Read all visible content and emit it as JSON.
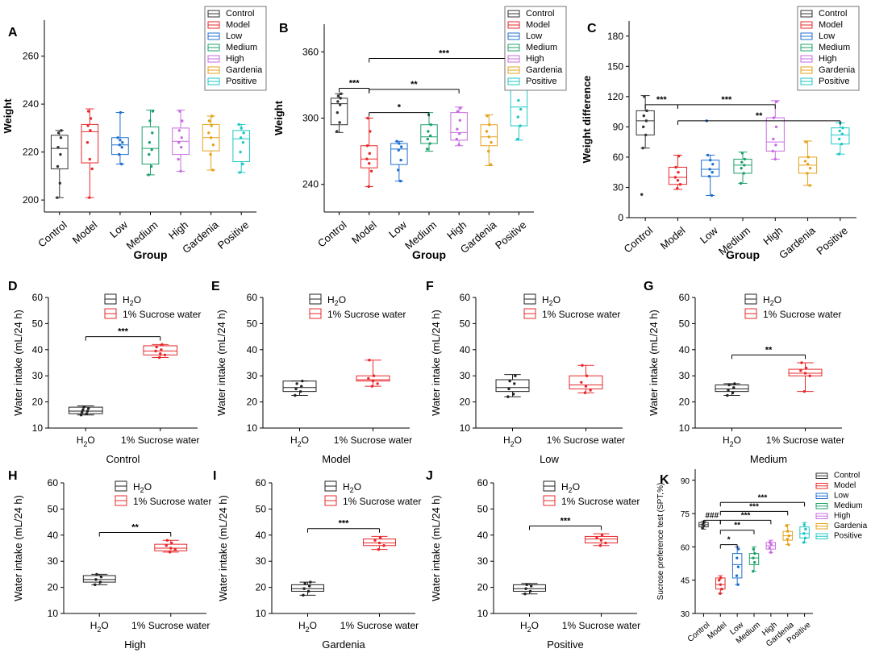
{
  "figure": {
    "colors": {
      "Control": "#333333",
      "Model": "#e8282b",
      "Low": "#1f6fd1",
      "Medium": "#1ca06a",
      "High": "#c76be0",
      "Gardenia": "#e5a21b",
      "Positive": "#1fc7c7",
      "H2O": "#222222",
      "Sucrose": "#e8282b"
    }
  },
  "chart_data": [
    {
      "panel": "A",
      "type": "box",
      "xlabel": "Group",
      "ylabel": "Weight",
      "ylim": [
        195,
        275
      ],
      "yticks": [
        200,
        220,
        240,
        260
      ],
      "legend": [
        "Control",
        "Model",
        "Low",
        "Medium",
        "High",
        "Gardenia",
        "Positive"
      ],
      "categories": [
        "Control",
        "Model",
        "Low",
        "Medium",
        "High",
        "Gardenia",
        "Positive"
      ],
      "boxes": [
        {
          "q1": 213,
          "median": 221.5,
          "q3": 227,
          "min": 201,
          "max": 229,
          "points": [
            201,
            207,
            214,
            219,
            222,
            226,
            228,
            229
          ]
        },
        {
          "q1": 215.5,
          "median": 228.5,
          "q3": 231.5,
          "min": 201,
          "max": 238,
          "points": [
            201,
            213,
            217,
            224,
            229,
            231,
            234,
            237
          ]
        },
        {
          "q1": 219,
          "median": 223,
          "q3": 226,
          "min": 215,
          "max": 236.5,
          "points": [
            215,
            219,
            222,
            223,
            224,
            225,
            226,
            236.5
          ]
        },
        {
          "q1": 215,
          "median": 221.5,
          "q3": 230.5,
          "min": 210.5,
          "max": 237.5,
          "points": [
            210.5,
            214,
            219,
            221,
            224,
            228,
            233,
            237
          ]
        },
        {
          "q1": 219,
          "median": 224.5,
          "q3": 230,
          "min": 212,
          "max": 237.5,
          "points": [
            212,
            217,
            222,
            224,
            226,
            229,
            233,
            237
          ]
        },
        {
          "q1": 220.5,
          "median": 226,
          "q3": 231.5,
          "min": 212.5,
          "max": 235,
          "points": [
            212.5,
            219,
            223,
            226,
            228,
            231,
            233,
            235
          ]
        },
        {
          "q1": 216,
          "median": 225.5,
          "q3": 229,
          "min": 211.5,
          "max": 231.5,
          "points": [
            211.5,
            215,
            220,
            224,
            226,
            228,
            230,
            231.5
          ]
        }
      ],
      "annotations": []
    },
    {
      "panel": "B",
      "type": "box",
      "xlabel": "Group",
      "ylabel": "Weight",
      "ylim": [
        215,
        385
      ],
      "yticks": [
        240,
        300,
        360
      ],
      "legend": [
        "Control",
        "Model",
        "Low",
        "Medium",
        "High",
        "Gardenia",
        "Positive"
      ],
      "categories": [
        "Control",
        "Model",
        "Low",
        "Medium",
        "High",
        "Gardenia",
        "Positive"
      ],
      "boxes": [
        {
          "q1": 294,
          "median": 313,
          "q3": 318,
          "min": 287,
          "max": 322,
          "points": [
            288,
            296,
            305,
            312,
            315,
            318,
            320,
            322
          ]
        },
        {
          "q1": 255,
          "median": 263,
          "q3": 275,
          "min": 238,
          "max": 300,
          "points": [
            238,
            252,
            259,
            263,
            268,
            275,
            288,
            300
          ]
        },
        {
          "q1": 258,
          "median": 272,
          "q3": 277,
          "min": 243,
          "max": 279,
          "points": [
            243,
            253,
            262,
            271,
            274,
            277,
            279
          ]
        },
        {
          "q1": 277,
          "median": 283,
          "q3": 294,
          "min": 270,
          "max": 305,
          "points": [
            272,
            277,
            281,
            284,
            288,
            294,
            303
          ]
        },
        {
          "q1": 280,
          "median": 287,
          "q3": 305,
          "min": 275,
          "max": 310,
          "points": [
            276,
            281,
            286,
            290,
            298,
            306,
            309
          ]
        },
        {
          "q1": 275,
          "median": 283,
          "q3": 294,
          "min": 257,
          "max": 303,
          "points": [
            258,
            270,
            278,
            283,
            288,
            294,
            302
          ]
        },
        {
          "q1": 293,
          "median": 310,
          "q3": 330,
          "min": 280,
          "max": 348,
          "points": [
            281,
            293,
            301,
            308,
            316,
            328,
            346
          ]
        }
      ],
      "annotations": [
        {
          "from": 0,
          "to": 1,
          "label": "***",
          "y": 327
        },
        {
          "from": 1,
          "to": 6,
          "label": "***",
          "y": 354
        },
        {
          "from": 1,
          "to": 4,
          "label": "**",
          "y": 326
        },
        {
          "from": 1,
          "to": 3,
          "label": "*",
          "y": 305
        }
      ]
    },
    {
      "panel": "C",
      "type": "box",
      "xlabel": "Group",
      "ylabel": "Weight difference",
      "ylim": [
        0,
        195
      ],
      "yticks": [
        0,
        30,
        60,
        90,
        120,
        150,
        180
      ],
      "legend": [
        "Control",
        "Model",
        "Low",
        "Medium",
        "High",
        "Gardenia",
        "Positive"
      ],
      "categories": [
        "Control",
        "Model",
        "Low",
        "Medium",
        "High",
        "Gardenia",
        "Positive"
      ],
      "boxes": [
        {
          "q1": 82,
          "median": 96,
          "q3": 106,
          "min": 69,
          "max": 121,
          "outliers": [
            23
          ],
          "points": [
            69,
            82,
            90,
            96,
            101,
            106,
            120
          ]
        },
        {
          "q1": 33,
          "median": 40,
          "q3": 50,
          "min": 28,
          "max": 62,
          "points": [
            29,
            33,
            37,
            40,
            45,
            50,
            61
          ]
        },
        {
          "q1": 41,
          "median": 48,
          "q3": 57,
          "min": 22,
          "max": 62,
          "outliers": [
            96
          ],
          "points": [
            22,
            41,
            45,
            48,
            53,
            57,
            62
          ]
        },
        {
          "q1": 44,
          "median": 52,
          "q3": 58,
          "min": 34,
          "max": 65,
          "points": [
            34,
            44,
            49,
            52,
            55,
            58,
            64
          ]
        },
        {
          "q1": 66,
          "median": 75,
          "q3": 99,
          "min": 58,
          "max": 116,
          "points": [
            58,
            66,
            72,
            78,
            90,
            99,
            115
          ]
        },
        {
          "q1": 44,
          "median": 52,
          "q3": 60,
          "min": 32,
          "max": 76,
          "points": [
            32,
            44,
            49,
            53,
            56,
            60,
            75
          ]
        },
        {
          "q1": 73,
          "median": 82,
          "q3": 89,
          "min": 63,
          "max": 94,
          "points": [
            63,
            73,
            78,
            83,
            86,
            89,
            94
          ]
        }
      ],
      "annotations": [
        {
          "from": 0,
          "to": 1,
          "label": "***",
          "y": 112
        },
        {
          "from": 1,
          "to": 4,
          "label": "***",
          "y": 112
        },
        {
          "from": 1,
          "to": 6,
          "label": "**",
          "y": 96
        }
      ]
    },
    {
      "panel": "D",
      "type": "box",
      "title": "Control",
      "ylabel": "Water intake  (mL/24 h)",
      "ylim": [
        10,
        60
      ],
      "yticks": [
        10,
        20,
        30,
        40,
        50,
        60
      ],
      "legend": [
        "H2O",
        "1% Sucrose water"
      ],
      "categories": [
        "H2O",
        "1% Sucrose water"
      ],
      "sig": "***",
      "boxes": [
        {
          "q1": 15.5,
          "median": 16.5,
          "q3": 18,
          "min": 15,
          "max": 18.5,
          "points": [
            15,
            15.5,
            16,
            16.5,
            17,
            17.5,
            18
          ]
        },
        {
          "q1": 38,
          "median": 39.5,
          "q3": 41.5,
          "min": 37,
          "max": 42,
          "points": [
            37,
            38,
            38.5,
            39.5,
            40,
            41,
            42
          ]
        }
      ]
    },
    {
      "panel": "E",
      "type": "box",
      "title": "Model",
      "ylabel": "Water intake  (mL/24 h)",
      "ylim": [
        10,
        60
      ],
      "yticks": [
        10,
        20,
        30,
        40,
        50,
        60
      ],
      "legend": [
        "H2O",
        "1% Sucrose water"
      ],
      "categories": [
        "H2O",
        "1% Sucrose water"
      ],
      "sig": "",
      "boxes": [
        {
          "q1": 24,
          "median": 25.5,
          "q3": 28,
          "min": 22.5,
          "max": 28,
          "points": [
            22.5,
            24,
            25,
            26,
            27,
            28
          ]
        },
        {
          "q1": 28,
          "median": 28.5,
          "q3": 30,
          "min": 26,
          "max": 36,
          "points": [
            26,
            27,
            28,
            29,
            30,
            36
          ]
        }
      ]
    },
    {
      "panel": "F",
      "type": "box",
      "title": "Low",
      "ylabel": "Water intake  (mL/24 h)",
      "ylim": [
        10,
        60
      ],
      "yticks": [
        10,
        20,
        30,
        40,
        50,
        60
      ],
      "legend": [
        "H2O",
        "1% Sucrose water"
      ],
      "categories": [
        "H2O",
        "1% Sucrose water"
      ],
      "sig": "",
      "boxes": [
        {
          "q1": 24,
          "median": 25.5,
          "q3": 28.5,
          "min": 22,
          "max": 30.5,
          "points": [
            22,
            23,
            25,
            27,
            28,
            30
          ]
        },
        {
          "q1": 25,
          "median": 26.5,
          "q3": 30,
          "min": 23.5,
          "max": 34,
          "points": [
            23.5,
            24.5,
            26,
            27.5,
            30,
            34
          ]
        }
      ]
    },
    {
      "panel": "G",
      "type": "box",
      "title": "Medium",
      "ylabel": "Water intake  (mL/24 h)",
      "ylim": [
        10,
        60
      ],
      "yticks": [
        10,
        20,
        30,
        40,
        50,
        60
      ],
      "legend": [
        "H2O",
        "1% Sucrose water"
      ],
      "categories": [
        "H2O",
        "1% Sucrose water"
      ],
      "sig": "**",
      "boxes": [
        {
          "q1": 24,
          "median": 25,
          "q3": 26.5,
          "min": 22.5,
          "max": 27,
          "points": [
            22.5,
            23.5,
            24.5,
            25.5,
            26.5,
            27
          ]
        },
        {
          "q1": 30,
          "median": 31,
          "q3": 32.5,
          "min": 24,
          "max": 35,
          "points": [
            24,
            30,
            31,
            32,
            33,
            35
          ]
        }
      ]
    },
    {
      "panel": "H",
      "type": "box",
      "title": "High",
      "ylabel": "Water intake  (mL/24 h)",
      "ylim": [
        10,
        60
      ],
      "yticks": [
        10,
        20,
        30,
        40,
        50,
        60
      ],
      "legend": [
        "H2O",
        "1% Sucrose water"
      ],
      "categories": [
        "H2O",
        "1% Sucrose water"
      ],
      "sig": "**",
      "boxes": [
        {
          "q1": 22,
          "median": 23,
          "q3": 24.5,
          "min": 21,
          "max": 25,
          "points": [
            21,
            22,
            23,
            24,
            25
          ]
        },
        {
          "q1": 34,
          "median": 35,
          "q3": 36.5,
          "min": 33.5,
          "max": 38,
          "points": [
            33.5,
            34.5,
            35,
            36,
            37,
            38
          ]
        }
      ]
    },
    {
      "panel": "I",
      "type": "box",
      "title": "Gardenia",
      "ylabel": "Water intake  (mL/24 h)",
      "ylim": [
        10,
        60
      ],
      "yticks": [
        10,
        20,
        30,
        40,
        50,
        60
      ],
      "legend": [
        "H2O",
        "1% Sucrose water"
      ],
      "categories": [
        "H2O",
        "1% Sucrose water"
      ],
      "sig": "***",
      "boxes": [
        {
          "q1": 18.5,
          "median": 19.5,
          "q3": 21,
          "min": 17,
          "max": 22,
          "points": [
            17,
            18.5,
            19.5,
            20.5,
            21.5,
            22
          ]
        },
        {
          "q1": 36,
          "median": 37,
          "q3": 38.5,
          "min": 34.5,
          "max": 39.5,
          "points": [
            34.5,
            36,
            37,
            38,
            39
          ]
        }
      ]
    },
    {
      "panel": "J",
      "type": "box",
      "title": "Positive",
      "ylabel": "Water intake  (mL/24 h)",
      "ylim": [
        10,
        60
      ],
      "yticks": [
        10,
        20,
        30,
        40,
        50,
        60
      ],
      "legend": [
        "H2O",
        "1% Sucrose water"
      ],
      "categories": [
        "H2O",
        "1% Sucrose water"
      ],
      "sig": "***",
      "boxes": [
        {
          "q1": 18.5,
          "median": 19.5,
          "q3": 21,
          "min": 17.5,
          "max": 21.5,
          "points": [
            17.5,
            18.5,
            19.5,
            20.5,
            21
          ]
        },
        {
          "q1": 37,
          "median": 38.5,
          "q3": 39.5,
          "min": 36,
          "max": 40.5,
          "points": [
            36,
            37,
            38,
            39,
            40
          ]
        }
      ]
    },
    {
      "panel": "K",
      "type": "box",
      "xlabel": "",
      "ylabel": "Sucrose preference test (SPT,%)",
      "ylim": [
        30,
        95
      ],
      "yticks": [
        30,
        45,
        60,
        75,
        90
      ],
      "legend": [
        "Control",
        "Model",
        "Low",
        "Medium",
        "High",
        "Gardenia",
        "Positive"
      ],
      "categories": [
        "Control",
        "Model",
        "Low",
        "Medium",
        "High",
        "Gardenia",
        "Positive"
      ],
      "boxes": [
        {
          "q1": 69,
          "median": 70,
          "q3": 71,
          "min": 68,
          "max": 71.5,
          "points": [
            68.5,
            69.5,
            70,
            71
          ]
        },
        {
          "q1": 41,
          "median": 43,
          "q3": 46,
          "min": 39,
          "max": 47,
          "points": [
            39,
            41,
            43,
            45,
            46
          ]
        },
        {
          "q1": 46,
          "median": 52,
          "q3": 57,
          "min": 43,
          "max": 60,
          "points": [
            43,
            47,
            51,
            55,
            59
          ]
        },
        {
          "q1": 52,
          "median": 55,
          "q3": 57,
          "min": 49,
          "max": 60,
          "points": [
            49,
            53,
            55,
            57,
            59
          ]
        },
        {
          "q1": 59,
          "median": 60.5,
          "q3": 62,
          "min": 57.5,
          "max": 63,
          "points": [
            57.5,
            59.5,
            61,
            62
          ]
        },
        {
          "q1": 63,
          "median": 65,
          "q3": 67,
          "min": 61,
          "max": 70,
          "points": [
            61,
            63.5,
            65,
            67,
            69.5
          ]
        },
        {
          "q1": 64,
          "median": 66,
          "q3": 69,
          "min": 62,
          "max": 71,
          "points": [
            62,
            64,
            66,
            68,
            70
          ]
        }
      ],
      "annotations": [
        {
          "from": 0,
          "to": 1,
          "label": "###",
          "y": 72
        },
        {
          "from": 1,
          "to": 6,
          "label": "***",
          "y": 80
        },
        {
          "from": 1,
          "to": 5,
          "label": "***",
          "y": 76
        },
        {
          "from": 1,
          "to": 4,
          "label": "***",
          "y": 72
        },
        {
          "from": 1,
          "to": 3,
          "label": "**",
          "y": 67.5
        },
        {
          "from": 1,
          "to": 2,
          "label": "*",
          "y": 61
        }
      ]
    }
  ]
}
